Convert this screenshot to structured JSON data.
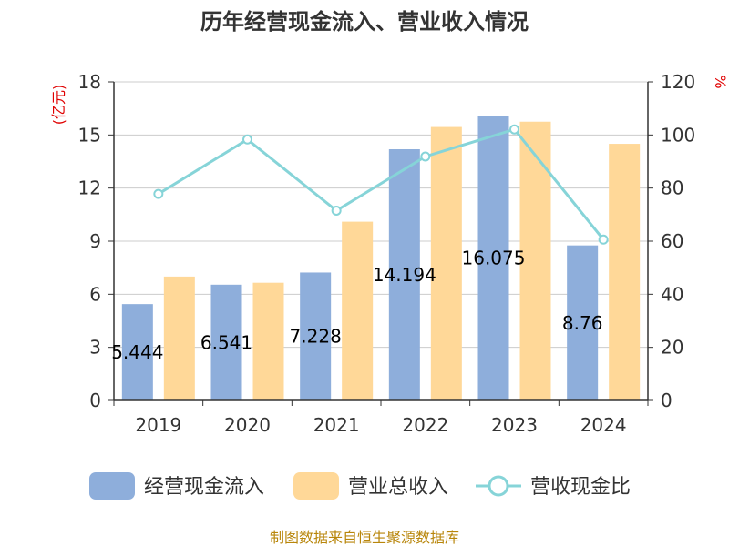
{
  "chart_data": {
    "type": "bar",
    "title": "历年经营现金流入、营业收入情况",
    "categories": [
      "2019",
      "2020",
      "2021",
      "2022",
      "2023",
      "2024"
    ],
    "left_axis": {
      "unit": "(亿元)",
      "ticks": [
        "0",
        "3",
        "6",
        "9",
        "12",
        "15",
        "18"
      ],
      "ylim": [
        0,
        18
      ]
    },
    "right_axis": {
      "unit": "%",
      "ticks": [
        "0",
        "20",
        "40",
        "60",
        "80",
        "100",
        "120"
      ],
      "ylim": [
        0,
        120
      ]
    },
    "series": [
      {
        "name": "经营现金流入",
        "type": "bar",
        "axis": "left",
        "color": "#8eaedb",
        "values": [
          5.444,
          6.541,
          7.228,
          14.194,
          16.075,
          8.76
        ],
        "labels": [
          "5.444",
          "6.541",
          "7.228",
          "14.194",
          "16.075",
          "8.76"
        ]
      },
      {
        "name": "营业总收入",
        "type": "bar",
        "axis": "left",
        "color": "#ffd898",
        "values": [
          7.0,
          6.65,
          10.1,
          15.45,
          15.75,
          14.5
        ]
      },
      {
        "name": "营收现金比",
        "type": "line",
        "axis": "right",
        "color": "#86d4d8",
        "values": [
          77.8,
          98.3,
          71.5,
          91.9,
          102.1,
          60.6
        ]
      }
    ],
    "grid": true,
    "legend_position": "bottom"
  },
  "source": "制图数据来自恒生聚源数据库"
}
